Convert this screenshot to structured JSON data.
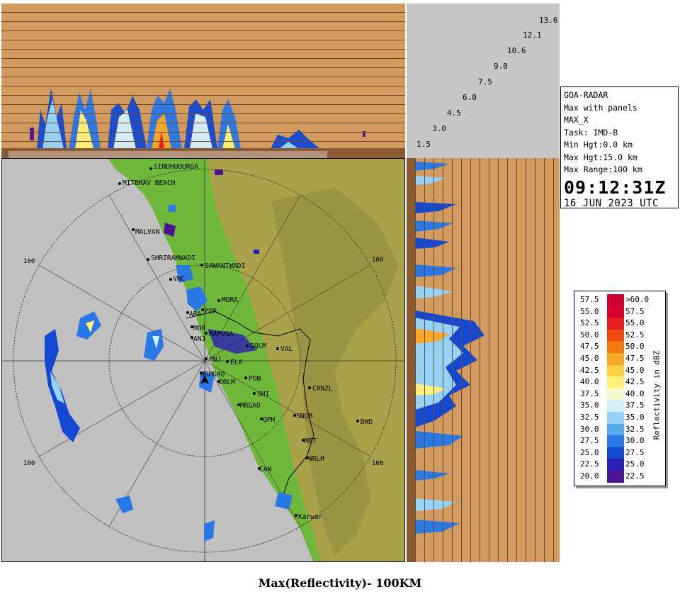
{
  "header_panel": {
    "height_labels": [
      "13.6",
      "12.1",
      "10.6",
      "9.0",
      "7.5",
      "6.0",
      "4.5",
      "3.0",
      "1.5"
    ]
  },
  "info": {
    "station": "GOA-RADAR",
    "product": "Max with panels",
    "mode": "MAX_X",
    "task": "Task: IMD-B",
    "min_hgt": "Min Hgt:0.0 km",
    "max_hgt": "Max Hgt:15.0 km",
    "max_range": "Max Range:100 km",
    "time": "09:12:31Z",
    "date": "16 JUN 2023 UTC"
  },
  "map": {
    "ring_labels": [
      "100",
      "100",
      "100",
      "100"
    ],
    "cities": [
      {
        "name": "SINDHUDURGA"
      },
      {
        "name": "MITBHAV BEACH"
      },
      {
        "name": "MALVAN"
      },
      {
        "name": "SHRIRAMWADI"
      },
      {
        "name": "SAWANTWADI"
      },
      {
        "name": "VNC"
      },
      {
        "name": "MORA"
      },
      {
        "name": "ARA"
      },
      {
        "name": "PER"
      },
      {
        "name": "MOR"
      },
      {
        "name": "MAPUSA"
      },
      {
        "name": "ANJ"
      },
      {
        "name": "SQLM"
      },
      {
        "name": "VAL"
      },
      {
        "name": "PNJ"
      },
      {
        "name": "ELA"
      },
      {
        "name": "MRMGAO"
      },
      {
        "name": "DBLM"
      },
      {
        "name": "PON"
      },
      {
        "name": "SHI"
      },
      {
        "name": "CRNZL"
      },
      {
        "name": "MRGAO"
      },
      {
        "name": "QPH"
      },
      {
        "name": "SNGM"
      },
      {
        "name": "DWD"
      },
      {
        "name": "MET"
      },
      {
        "name": "WRLH"
      },
      {
        "name": "CAN"
      },
      {
        "name": "Karwar"
      }
    ]
  },
  "legend": {
    "title": "Reflectivity in dBZ",
    "rows": [
      {
        "lo": "57.5",
        "hi": ">60.0",
        "color": "#cc0033"
      },
      {
        "lo": "55.0",
        "hi": "57.5",
        "color": "#d8002a"
      },
      {
        "lo": "52.5",
        "hi": "55.0",
        "color": "#e61e1e"
      },
      {
        "lo": "50.0",
        "hi": "52.5",
        "color": "#ee4a14"
      },
      {
        "lo": "47.5",
        "hi": "50.0",
        "color": "#f47a10"
      },
      {
        "lo": "45.0",
        "hi": "47.5",
        "color": "#f8a828"
      },
      {
        "lo": "42.5",
        "hi": "45.0",
        "color": "#fcd040"
      },
      {
        "lo": "40.0",
        "hi": "42.5",
        "color": "#fff078"
      },
      {
        "lo": "37.5",
        "hi": "40.0",
        "color": "#f6fad2"
      },
      {
        "lo": "35.0",
        "hi": "37.5",
        "color": "#d2f0fa"
      },
      {
        "lo": "32.5",
        "hi": "35.0",
        "color": "#96d2f8"
      },
      {
        "lo": "30.0",
        "hi": "32.5",
        "color": "#5aaaf0"
      },
      {
        "lo": "27.5",
        "hi": "30.0",
        "color": "#2a78e6"
      },
      {
        "lo": "25.0",
        "hi": "27.5",
        "color": "#1448d2"
      },
      {
        "lo": "22.5",
        "hi": "25.0",
        "color": "#2a1eb4"
      },
      {
        "lo": "20.0",
        "hi": "22.5",
        "color": "#4a1496"
      }
    ]
  },
  "caption": "Max(Reflectivity)- 100KM"
}
